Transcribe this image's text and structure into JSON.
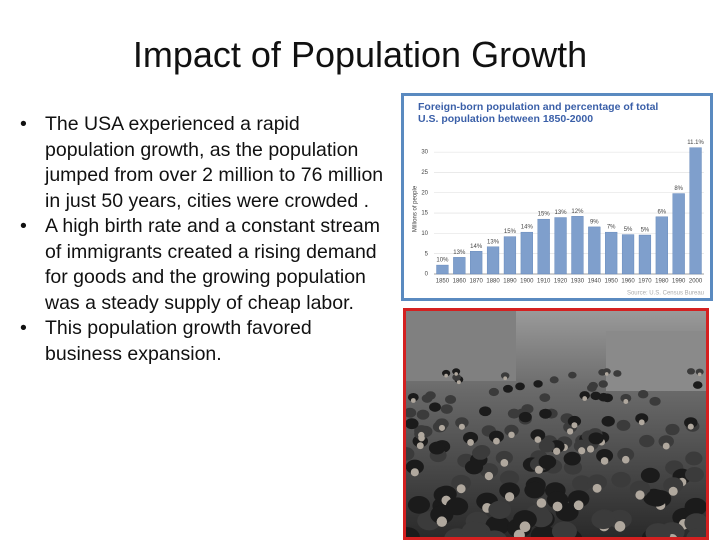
{
  "slide": {
    "title": "Impact of Population Growth",
    "bullets": [
      "The USA experienced a rapid population growth, as the population jumped from over 2 million to 76 million in just 50 years, cities were crowded .",
      "A high birth rate and a constant stream of immigrants created a rising demand for goods and the growing population was a steady supply of cheap labor.",
      "This population growth  favored business expansion."
    ]
  },
  "chart_data": {
    "type": "bar",
    "title": "Foreign-born population and percentage of total U.S. population between 1850-2000",
    "y_label": "Millions of people",
    "source": "Source: U.S. Census Bureau",
    "categories": [
      "1850",
      "1860",
      "1870",
      "1880",
      "1890",
      "1900",
      "1910",
      "1920",
      "1930",
      "1940",
      "1950",
      "1960",
      "1970",
      "1980",
      "1990",
      "2000"
    ],
    "values": [
      2.2,
      4.1,
      5.6,
      6.7,
      9.2,
      10.3,
      13.5,
      13.9,
      14.2,
      11.6,
      10.3,
      9.7,
      9.6,
      14.1,
      19.8,
      31.1
    ],
    "bar_texts": [
      "10%",
      "13%",
      "14%",
      "13%",
      "15%",
      "14%",
      "15%",
      "13%",
      "12%",
      "9%",
      "7%",
      "5%",
      "5%",
      "6%",
      "8%",
      "11.1%"
    ],
    "color": "#7f9fcc",
    "ylim": [
      0,
      32
    ],
    "yticks": [
      0,
      5,
      10,
      15,
      20,
      25,
      30
    ],
    "grid": true
  }
}
